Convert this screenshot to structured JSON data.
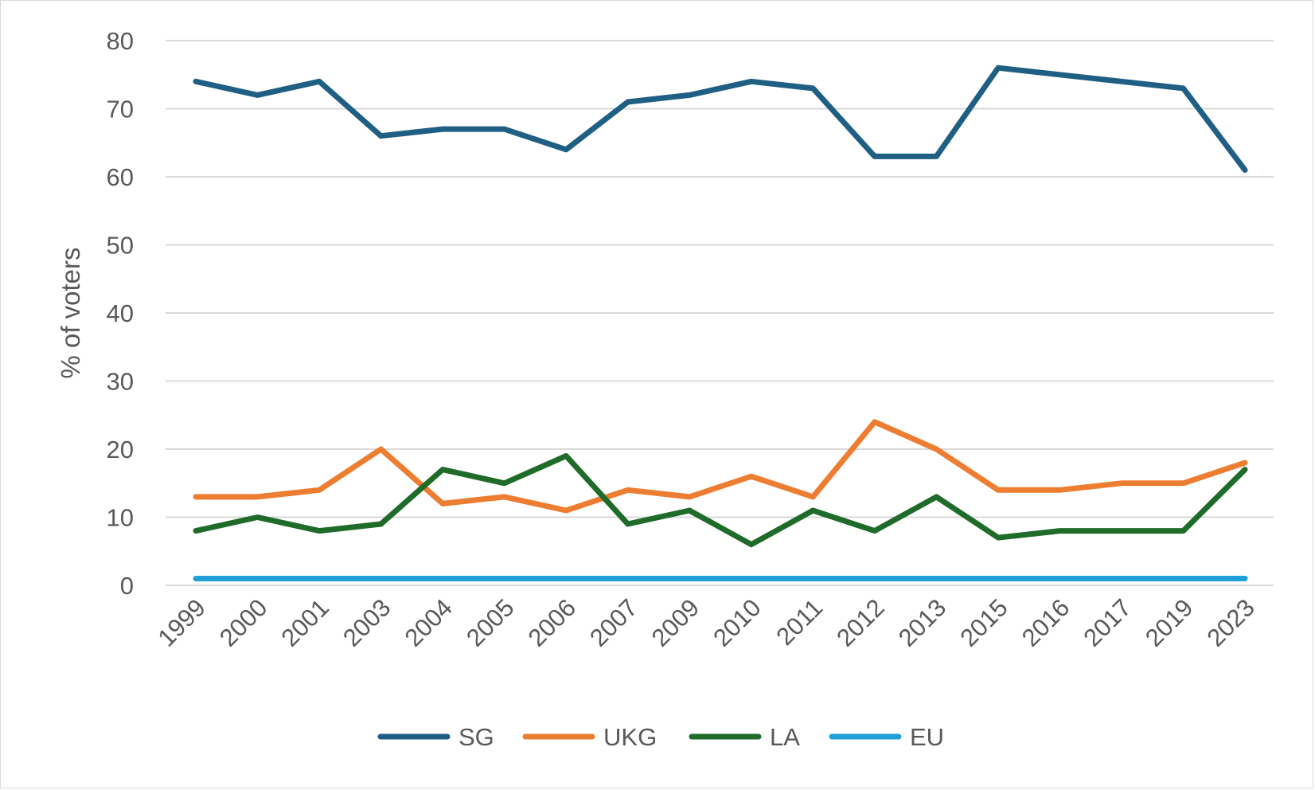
{
  "chart_data": {
    "type": "line",
    "title": "",
    "xlabel": "",
    "ylabel": "% of voters",
    "ylim": [
      0,
      80
    ],
    "yticks": [
      "0",
      "10",
      "20",
      "30",
      "40",
      "50",
      "60",
      "70",
      "80"
    ],
    "grid": true,
    "legend_position": "bottom",
    "categories": [
      "1999",
      "2000",
      "2001",
      "2003",
      "2004",
      "2005",
      "2006",
      "2007",
      "2009",
      "2010",
      "2011",
      "2012",
      "2013",
      "2015",
      "2016",
      "2017",
      "2019",
      "2023"
    ],
    "series": [
      {
        "name": "SG",
        "color": "#1f5f84",
        "values": [
          74,
          72,
          74,
          66,
          67,
          67,
          64,
          71,
          72,
          74,
          73,
          63,
          63,
          76,
          75,
          74,
          73,
          61
        ]
      },
      {
        "name": "UKG",
        "color": "#ed7d31",
        "values": [
          13,
          13,
          14,
          20,
          12,
          13,
          11,
          14,
          13,
          16,
          13,
          24,
          20,
          14,
          14,
          15,
          15,
          18
        ]
      },
      {
        "name": "LA",
        "color": "#1f6b2a",
        "values": [
          8,
          10,
          8,
          9,
          17,
          15,
          19,
          9,
          11,
          6,
          11,
          8,
          13,
          7,
          8,
          8,
          8,
          17
        ]
      },
      {
        "name": "EU",
        "color": "#1fa0d8",
        "values": [
          1,
          1,
          1,
          1,
          1,
          1,
          1,
          1,
          1,
          1,
          1,
          1,
          1,
          1,
          1,
          1,
          1,
          1
        ]
      }
    ]
  }
}
